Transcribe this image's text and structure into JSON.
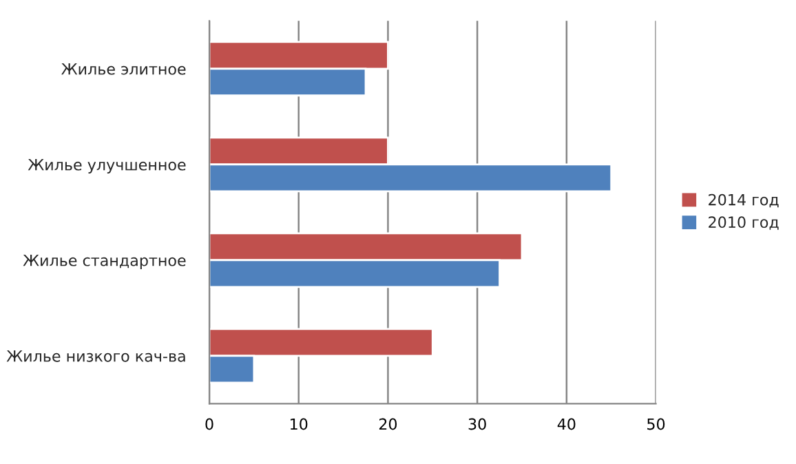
{
  "chart_data": {
    "type": "bar",
    "orientation": "horizontal",
    "categories": [
      "Жилье элитное",
      "Жилье улучшенное",
      "Жилье стандартное",
      "Жилье низкого кач-ва"
    ],
    "series": [
      {
        "name": "2014 год",
        "color": "#c0504d",
        "values": [
          20,
          20,
          35,
          25
        ]
      },
      {
        "name": "2010 год",
        "color": "#4f81bd",
        "values": [
          17.5,
          45,
          32.5,
          5
        ]
      }
    ],
    "xlim": [
      0,
      50
    ],
    "xticks": [
      0,
      10,
      20,
      30,
      40,
      50
    ],
    "grid": "x",
    "legend": "right"
  }
}
